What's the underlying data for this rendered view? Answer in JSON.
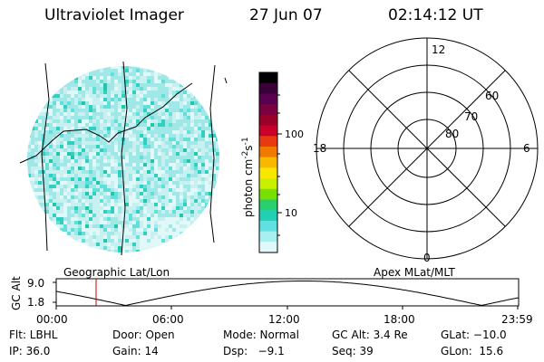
{
  "header": {
    "title": "Ultraviolet Imager",
    "date": "27 Jun 07",
    "time": "02:14:12 UT"
  },
  "colorbar": {
    "label": "photon cm",
    "label_sup1": "-2",
    "label_mid": "s",
    "label_sup2": "-1",
    "ticks": [
      "100",
      "10"
    ],
    "colors": [
      "#000000",
      "#3a0038",
      "#5a0050",
      "#7a0040",
      "#9a0028",
      "#c8002a",
      "#e83a10",
      "#f07a00",
      "#f8b800",
      "#f8e800",
      "#c8f000",
      "#78e000",
      "#28d070",
      "#20d0b0",
      "#60e0e0",
      "#a8f0f0",
      "#e0f8f8"
    ]
  },
  "image_map": {
    "label": "Geographic Lat/Lon",
    "pixel_colors": [
      "#c8f0f0",
      "#a0e8e8",
      "#60e0d8",
      "#30d0c0",
      "#20c8a8",
      "#e0f8f8"
    ]
  },
  "polar_plot": {
    "label": "Apex MLat/MLT",
    "mlt_labels": {
      "top": "12",
      "left": "18",
      "right": "6",
      "bottom": "0"
    },
    "lat_labels": [
      "60",
      "70",
      "80"
    ]
  },
  "altitude_plot": {
    "ylabel": "GC Alt",
    "yticks": [
      "9.0",
      "1.8"
    ],
    "xticks": [
      "00:00",
      "06:00",
      "12:00",
      "18:00",
      "23:59"
    ],
    "marker_color": "#cc0000"
  },
  "info": {
    "flt": "Flt: LBHL",
    "door": "Door: Open",
    "mode": "Mode: Normal",
    "gc_alt": "GC Alt: 3.4 Re",
    "glat": "GLat: −10.0",
    "ip": "IP: 36.0",
    "gain": "Gain: 14",
    "dsp": "Dsp:   −9.1",
    "seq": "Seq: 39",
    "glon": "GLon:  15.6"
  }
}
